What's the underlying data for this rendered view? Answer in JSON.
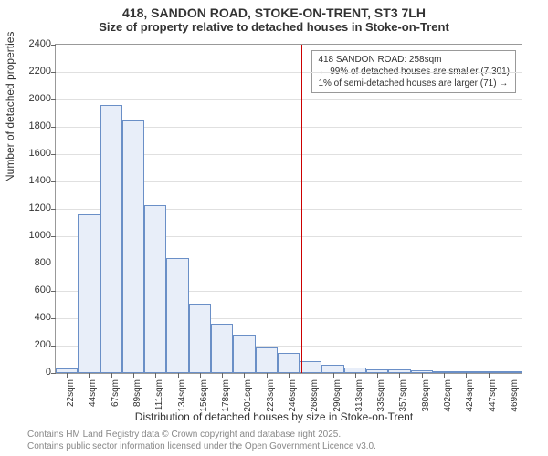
{
  "title_line1": "418, SANDON ROAD, STOKE-ON-TRENT, ST3 7LH",
  "title_line2": "Size of property relative to detached houses in Stoke-on-Trent",
  "ylabel": "Number of detached properties",
  "xlabel": "Distribution of detached houses by size in Stoke-on-Trent",
  "credits_line1": "Contains HM Land Registry data © Crown copyright and database right 2025.",
  "credits_line2": "Contains public sector information licensed under the Open Government Licence v3.0.",
  "chart": {
    "type": "histogram",
    "ylim": [
      0,
      2400
    ],
    "ytick_step": 200,
    "xticks": [
      22,
      44,
      67,
      89,
      111,
      134,
      156,
      178,
      201,
      223,
      246,
      268,
      290,
      313,
      335,
      357,
      380,
      402,
      424,
      447,
      469
    ],
    "xtick_suffix": "sqm",
    "bar_fill": "#e8eef9",
    "bar_border": "#6a8fc7",
    "grid_color": "#e0e0e0",
    "background_color": "#ffffff",
    "axis_color": "#999999",
    "values": [
      35,
      1160,
      1960,
      1850,
      1230,
      840,
      510,
      360,
      280,
      190,
      150,
      90,
      60,
      40,
      30,
      25,
      20,
      15,
      10,
      8,
      5
    ],
    "reference_line": {
      "x_value": 258,
      "color": "#cc0000"
    },
    "annotation": {
      "line1": "418 SANDON ROAD: 258sqm",
      "line2": "← 99% of detached houses are smaller (7,301)",
      "line3": "1% of semi-detached houses are larger (71) →",
      "border_color": "#999999",
      "background": "#ffffff",
      "fontsize": 10
    }
  }
}
